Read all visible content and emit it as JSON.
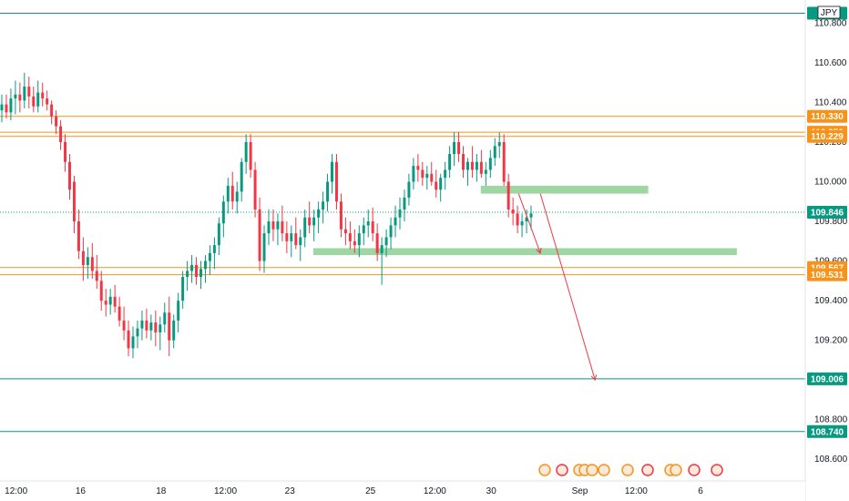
{
  "chart_data": {
    "type": "candlestick",
    "symbol_label": "JPY",
    "y_range": [
      108.5,
      110.88
    ],
    "x_ticks": [
      "12:00",
      "16",
      "18",
      "12:00",
      "23",
      "25",
      "12:00",
      "30",
      "Sep",
      "12:00",
      "6"
    ],
    "y_ticks": [
      "110.800",
      "110.600",
      "110.400",
      "110.200",
      "110.000",
      "109.800",
      "109.600",
      "109.400",
      "109.200",
      "108.800",
      "108.600"
    ],
    "y_tick_values": [
      110.8,
      110.6,
      110.4,
      110.2,
      110.0,
      109.8,
      109.6,
      109.4,
      109.2,
      108.8,
      108.6
    ],
    "price_lines": [
      {
        "value": 110.85,
        "color": "#089981",
        "label": "1…"
      },
      {
        "value": 110.33,
        "color": "#f7931a",
        "label": "110.330"
      },
      {
        "value": 110.25,
        "color": "#f7931a",
        "label": "110.250"
      },
      {
        "value": 110.229,
        "color": "#f7931a",
        "label": "110.229"
      },
      {
        "value": 109.567,
        "color": "#f7931a",
        "label": "109.567"
      },
      {
        "value": 109.531,
        "color": "#f7931a",
        "label": "109.531"
      },
      {
        "value": 109.006,
        "color": "#089981",
        "label": "109.006"
      },
      {
        "value": 108.74,
        "color": "#089981",
        "label": "108.740"
      }
    ],
    "current_price": {
      "value": 109.846,
      "color": "#089981",
      "label": "109.846"
    },
    "zones": [
      {
        "from_x": 0.597,
        "to_x": 0.805,
        "y_low": 109.94,
        "y_high": 109.98,
        "color": "#8ecf94"
      },
      {
        "from_x": 0.389,
        "to_x": 0.915,
        "y_low": 109.63,
        "y_high": 109.665,
        "color": "#8ecf94"
      }
    ],
    "arrows": [
      {
        "x1": 0.644,
        "y1": 109.94,
        "x2": 0.671,
        "y2": 109.64,
        "color": "#f23645"
      },
      {
        "x1": 0.671,
        "y1": 109.94,
        "x2": 0.739,
        "y2": 109.0,
        "color": "#f23645"
      }
    ],
    "up_color": "#089981",
    "down_color": "#f23645",
    "candles": [
      [
        110.36,
        110.44,
        110.3,
        110.39
      ],
      [
        110.39,
        110.44,
        110.32,
        110.35
      ],
      [
        110.35,
        110.47,
        110.31,
        110.42
      ],
      [
        110.42,
        110.51,
        110.34,
        110.44
      ],
      [
        110.44,
        110.5,
        110.35,
        110.41
      ],
      [
        110.41,
        110.55,
        110.37,
        110.48
      ],
      [
        110.48,
        110.53,
        110.37,
        110.43
      ],
      [
        110.43,
        110.48,
        110.35,
        110.38
      ],
      [
        110.38,
        110.51,
        110.35,
        110.45
      ],
      [
        110.45,
        110.5,
        110.38,
        110.42
      ],
      [
        110.42,
        110.46,
        110.36,
        110.39
      ],
      [
        110.39,
        110.41,
        110.29,
        110.33
      ],
      [
        110.33,
        110.36,
        110.24,
        110.28
      ],
      [
        110.28,
        110.31,
        110.16,
        110.2
      ],
      [
        110.2,
        110.24,
        110.05,
        110.1
      ],
      [
        110.1,
        110.14,
        109.91,
        109.96
      ],
      [
        110.0,
        110.03,
        109.74,
        109.8
      ],
      [
        109.8,
        109.86,
        109.61,
        109.65
      ],
      [
        109.65,
        109.72,
        109.5,
        109.58
      ],
      [
        109.58,
        109.67,
        109.51,
        109.62
      ],
      [
        109.62,
        109.69,
        109.51,
        109.55
      ],
      [
        109.55,
        109.63,
        109.46,
        109.5
      ],
      [
        109.5,
        109.55,
        109.35,
        109.4
      ],
      [
        109.4,
        109.46,
        109.32,
        109.38
      ],
      [
        109.38,
        109.46,
        109.33,
        109.42
      ],
      [
        109.42,
        109.48,
        109.34,
        109.37
      ],
      [
        109.37,
        109.42,
        109.27,
        109.3
      ],
      [
        109.3,
        109.37,
        109.2,
        109.25
      ],
      [
        109.25,
        109.3,
        109.12,
        109.16
      ],
      [
        109.16,
        109.27,
        109.11,
        109.22
      ],
      [
        109.22,
        109.3,
        109.16,
        109.26
      ],
      [
        109.26,
        109.35,
        109.2,
        109.3
      ],
      [
        109.3,
        109.36,
        109.21,
        109.25
      ],
      [
        109.25,
        109.33,
        109.2,
        109.29
      ],
      [
        109.29,
        109.35,
        109.17,
        109.24
      ],
      [
        109.24,
        109.32,
        109.15,
        109.28
      ],
      [
        109.28,
        109.39,
        109.24,
        109.34
      ],
      [
        109.34,
        109.42,
        109.12,
        109.2
      ],
      [
        109.2,
        109.33,
        109.16,
        109.3
      ],
      [
        109.3,
        109.44,
        109.24,
        109.4
      ],
      [
        109.4,
        109.55,
        109.36,
        109.52
      ],
      [
        109.52,
        109.6,
        109.45,
        109.55
      ],
      [
        109.55,
        109.63,
        109.49,
        109.58
      ],
      [
        109.58,
        109.62,
        109.48,
        109.52
      ],
      [
        109.52,
        109.6,
        109.46,
        109.56
      ],
      [
        109.56,
        109.63,
        109.49,
        109.6
      ],
      [
        109.6,
        109.68,
        109.53,
        109.64
      ],
      [
        109.64,
        109.72,
        109.56,
        109.68
      ],
      [
        109.68,
        109.82,
        109.63,
        109.79
      ],
      [
        109.79,
        109.93,
        109.72,
        109.9
      ],
      [
        109.9,
        110.02,
        109.84,
        109.98
      ],
      [
        109.98,
        110.05,
        109.86,
        109.9
      ],
      [
        109.9,
        110.0,
        109.84,
        109.95
      ],
      [
        109.95,
        110.12,
        109.9,
        110.1
      ],
      [
        110.1,
        110.24,
        110.04,
        110.2
      ],
      [
        110.2,
        110.24,
        110.02,
        110.06
      ],
      [
        110.06,
        110.1,
        109.82,
        109.86
      ],
      [
        109.86,
        109.92,
        109.55,
        109.6
      ],
      [
        109.6,
        109.78,
        109.54,
        109.74
      ],
      [
        109.74,
        109.86,
        109.68,
        109.8
      ],
      [
        109.8,
        109.86,
        109.7,
        109.76
      ],
      [
        109.76,
        109.84,
        109.68,
        109.8
      ],
      [
        109.8,
        109.88,
        109.7,
        109.74
      ],
      [
        109.74,
        109.8,
        109.64,
        109.7
      ],
      [
        109.7,
        109.78,
        109.62,
        109.74
      ],
      [
        109.74,
        109.82,
        109.66,
        109.68
      ],
      [
        109.68,
        109.76,
        109.6,
        109.72
      ],
      [
        109.72,
        109.86,
        109.67,
        109.82
      ],
      [
        109.82,
        109.9,
        109.74,
        109.78
      ],
      [
        109.78,
        109.86,
        109.7,
        109.82
      ],
      [
        109.82,
        109.9,
        109.74,
        109.86
      ],
      [
        109.86,
        109.95,
        109.79,
        109.9
      ],
      [
        109.9,
        110.04,
        109.85,
        110.0
      ],
      [
        110.0,
        110.14,
        109.94,
        110.1
      ],
      [
        110.1,
        110.14,
        109.86,
        109.9
      ],
      [
        109.9,
        109.94,
        109.72,
        109.76
      ],
      [
        109.76,
        109.82,
        109.68,
        109.74
      ],
      [
        109.74,
        109.8,
        109.66,
        109.7
      ],
      [
        109.7,
        109.76,
        109.64,
        109.68
      ],
      [
        109.68,
        109.78,
        109.62,
        109.74
      ],
      [
        109.74,
        109.82,
        109.68,
        109.78
      ],
      [
        109.78,
        109.86,
        109.72,
        109.8
      ],
      [
        109.8,
        109.87,
        109.7,
        109.74
      ],
      [
        109.74,
        109.79,
        109.6,
        109.64
      ],
      [
        109.64,
        109.72,
        109.48,
        109.68
      ],
      [
        109.68,
        109.76,
        109.62,
        109.72
      ],
      [
        109.72,
        109.82,
        109.66,
        109.78
      ],
      [
        109.78,
        109.88,
        109.72,
        109.82
      ],
      [
        109.82,
        109.92,
        109.76,
        109.86
      ],
      [
        109.86,
        109.96,
        109.8,
        109.92
      ],
      [
        109.92,
        110.04,
        109.88,
        110.0
      ],
      [
        110.0,
        110.12,
        109.96,
        110.08
      ],
      [
        110.08,
        110.14,
        110.0,
        110.06
      ],
      [
        110.06,
        110.1,
        109.98,
        110.02
      ],
      [
        110.02,
        110.08,
        109.96,
        110.04
      ],
      [
        110.04,
        110.1,
        109.98,
        110.0
      ],
      [
        110.0,
        110.06,
        109.92,
        109.96
      ],
      [
        109.96,
        110.04,
        109.9,
        110.02
      ],
      [
        110.02,
        110.1,
        109.96,
        110.06
      ],
      [
        110.06,
        110.18,
        110.02,
        110.14
      ],
      [
        110.14,
        110.25,
        110.08,
        110.2
      ],
      [
        110.2,
        110.25,
        110.1,
        110.14
      ],
      [
        110.14,
        110.18,
        110.02,
        110.06
      ],
      [
        110.06,
        110.12,
        109.98,
        110.1
      ],
      [
        110.1,
        110.18,
        110.02,
        110.06
      ],
      [
        110.06,
        110.14,
        110.0,
        110.1
      ],
      [
        110.1,
        110.16,
        110.02,
        110.04
      ],
      [
        110.04,
        110.1,
        109.98,
        110.06
      ],
      [
        110.06,
        110.16,
        110.02,
        110.12
      ],
      [
        110.12,
        110.22,
        110.08,
        110.18
      ],
      [
        110.18,
        110.25,
        110.12,
        110.2
      ],
      [
        110.2,
        110.24,
        109.98,
        110.0
      ],
      [
        110.0,
        110.04,
        109.82,
        109.86
      ],
      [
        109.86,
        109.92,
        109.78,
        109.84
      ],
      [
        109.84,
        109.88,
        109.74,
        109.78
      ],
      [
        109.78,
        109.84,
        109.72,
        109.8
      ],
      [
        109.8,
        109.86,
        109.74,
        109.82
      ],
      [
        109.82,
        109.88,
        109.76,
        109.84
      ]
    ]
  }
}
